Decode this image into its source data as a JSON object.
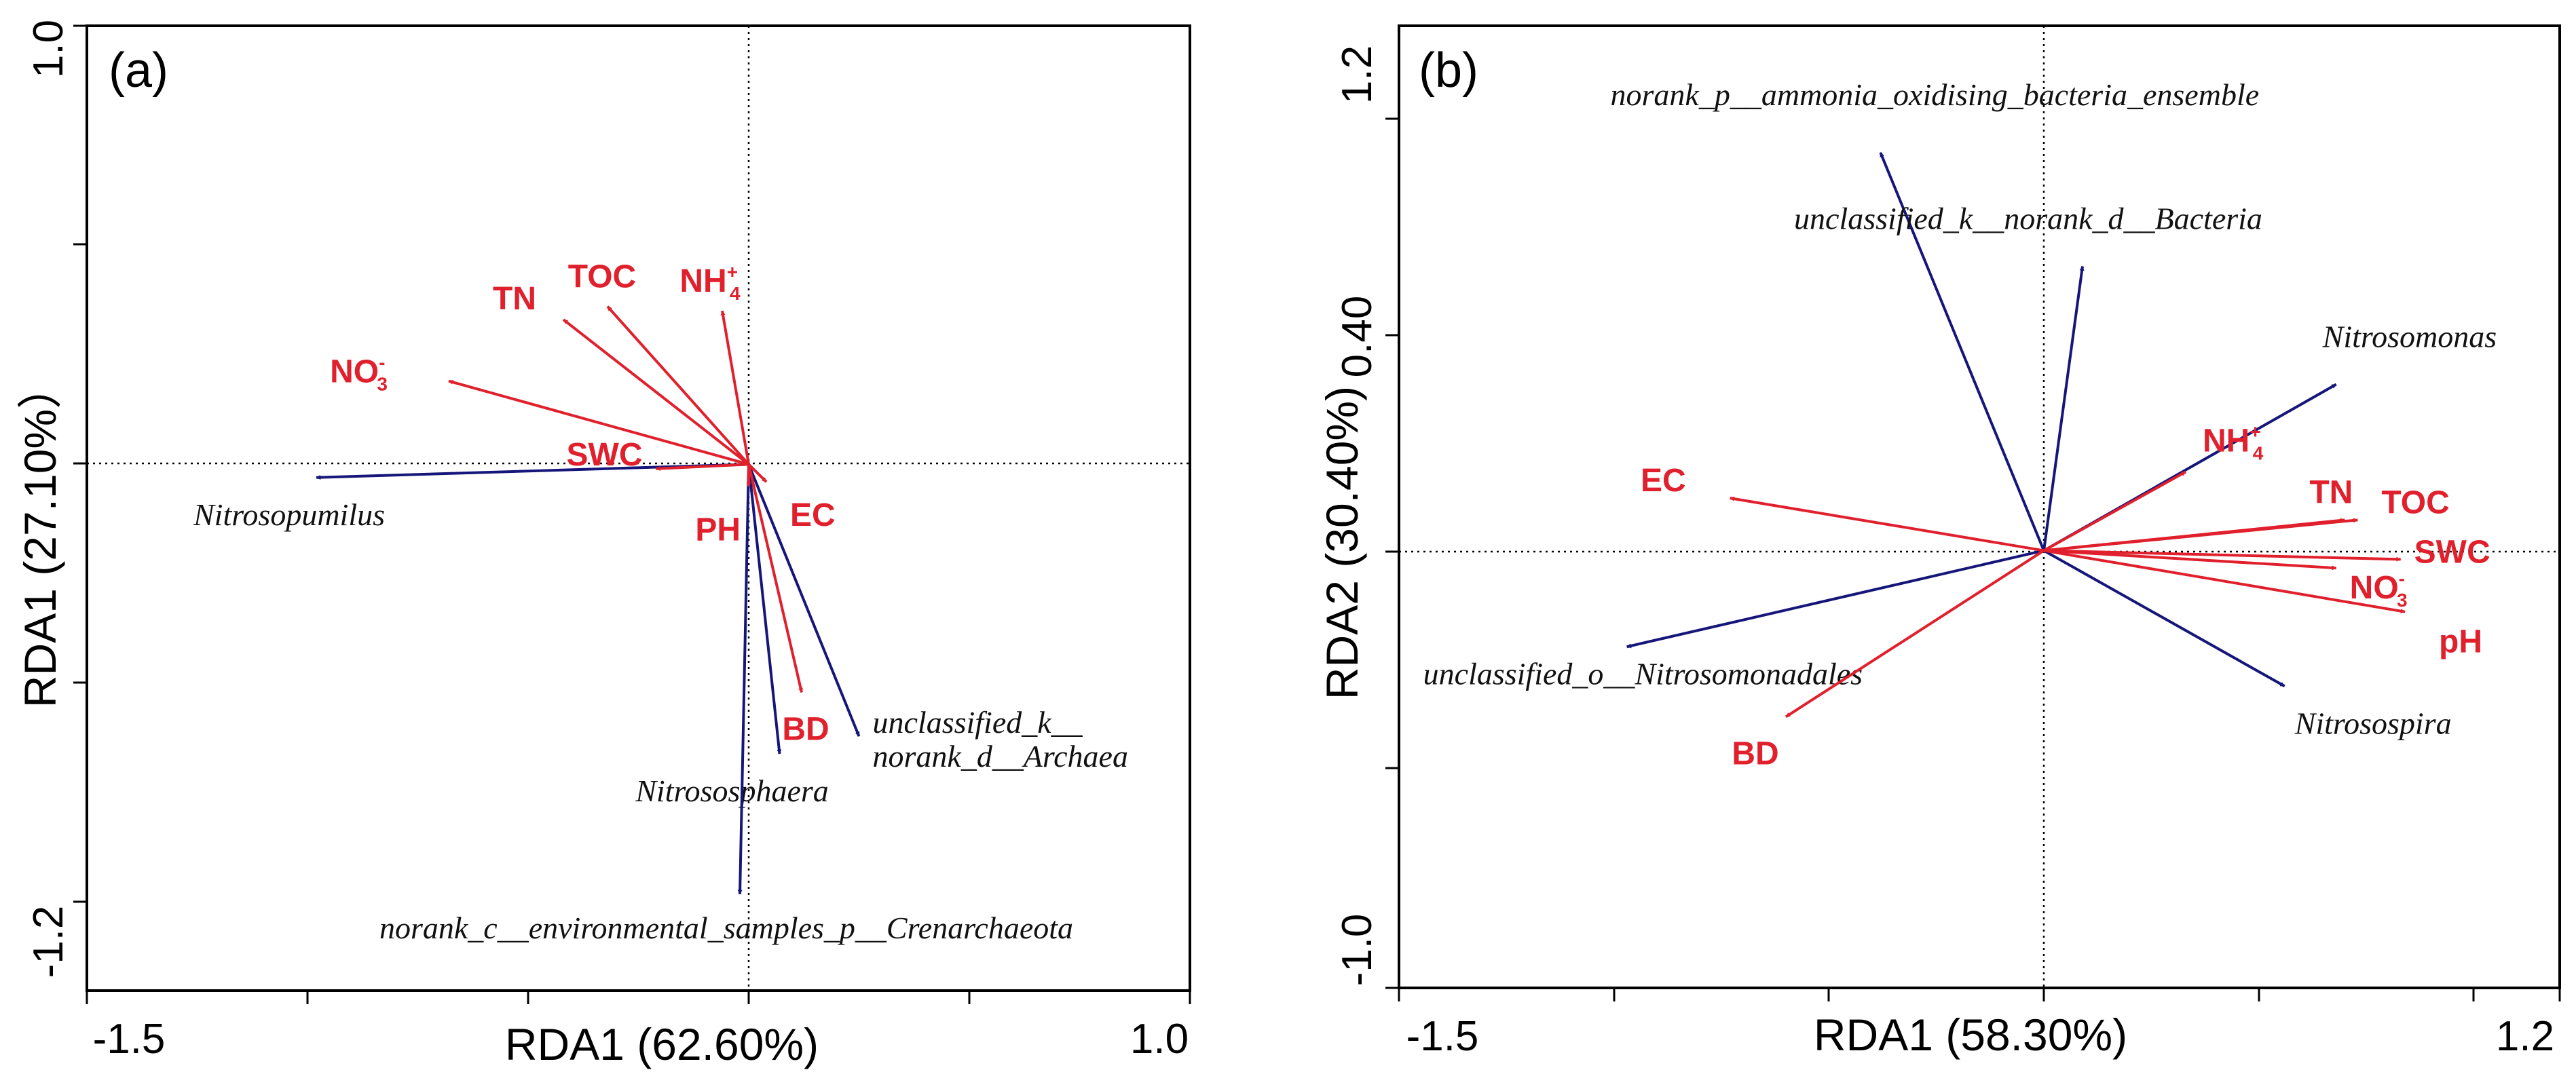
{
  "colors": {
    "environment": "#e0202c",
    "species": "#16167a",
    "axis": "#000000"
  },
  "chart_data": [
    {
      "type": "scatter",
      "subtype": "rda_biplot",
      "panel_label": "(a)",
      "xlabel": "RDA1 (62.60%)",
      "ylabel": "RDA1 (27.10%）",
      "xlim": [
        -1.5,
        1.0
      ],
      "ylim": [
        -1.2,
        1.0
      ],
      "x_tick_labels": [
        "-1.5",
        "1.0"
      ],
      "y_tick_labels": [
        "1.0",
        "-1.2"
      ],
      "environment_vectors": [
        {
          "label": "NO3",
          "sub": "3",
          "sup": "-",
          "x": -0.68,
          "y": 0.19
        },
        {
          "label": "TN",
          "x": -0.42,
          "y": 0.33
        },
        {
          "label": "TOC",
          "x": -0.32,
          "y": 0.36
        },
        {
          "label": "NH4",
          "sub": "4",
          "sup": "+",
          "x": -0.06,
          "y": 0.35
        },
        {
          "label": "SWC",
          "x": -0.21,
          "y": -0.01
        },
        {
          "label": "PH",
          "x": 0.0,
          "y": -0.05
        },
        {
          "label": "EC",
          "x": 0.04,
          "y": -0.04
        },
        {
          "label": "BD",
          "x": 0.12,
          "y": -0.52
        }
      ],
      "species_vectors": [
        {
          "label": "Nitrosopumilus",
          "x": -0.98,
          "y": -0.03
        },
        {
          "label": "Nitrososphaera",
          "x": 0.07,
          "y": -0.66
        },
        {
          "label": "unclassified_k__",
          "label2": "norank_d__Archaea",
          "x": 0.25,
          "y": -0.62
        },
        {
          "label": "norank_c__environmental_samples_p__Crenarchaeota",
          "x": -0.02,
          "y": -0.98
        }
      ]
    },
    {
      "type": "scatter",
      "subtype": "rda_biplot",
      "panel_label": "(b)",
      "xlabel": "RDA1 (58.30%)",
      "ylabel": "RDA2 (30.40%)",
      "xlim": [
        -1.5,
        1.2
      ],
      "ylim": [
        -1.0,
        1.2
      ],
      "x_tick_labels": [
        "-1.5",
        "1.2"
      ],
      "y_tick_labels": [
        "1.2",
        "0.40",
        "-1.0"
      ],
      "environment_vectors": [
        {
          "label": "EC",
          "x": -0.73,
          "y": 0.12
        },
        {
          "label": "BD",
          "x": -0.6,
          "y": -0.38
        },
        {
          "label": "NH4",
          "sub": "4",
          "sup": "+",
          "x": 0.33,
          "y": 0.18
        },
        {
          "label": "TN",
          "x": 0.7,
          "y": 0.07
        },
        {
          "label": "TOC",
          "x": 0.73,
          "y": 0.07
        },
        {
          "label": "SWC",
          "x": 0.83,
          "y": -0.02
        },
        {
          "label": "NO3",
          "sub": "3",
          "sup": "-",
          "x": 0.68,
          "y": -0.04
        },
        {
          "label": "pH",
          "x": 0.84,
          "y": -0.14
        }
      ],
      "species_vectors": [
        {
          "label": "norank_p__ammonia_oxidising_bacteria_ensemble",
          "x": -0.38,
          "y": 0.91
        },
        {
          "label": "unclassified_k__norank_d__Bacteria",
          "x": 0.09,
          "y": 0.65
        },
        {
          "label": "Nitrosomonas",
          "x": 0.68,
          "y": 0.38
        },
        {
          "label": "unclassified_o__Nitrosomonadales",
          "x": -0.97,
          "y": -0.22
        },
        {
          "label": "Nitrosospira",
          "x": 0.56,
          "y": -0.31
        }
      ]
    }
  ]
}
